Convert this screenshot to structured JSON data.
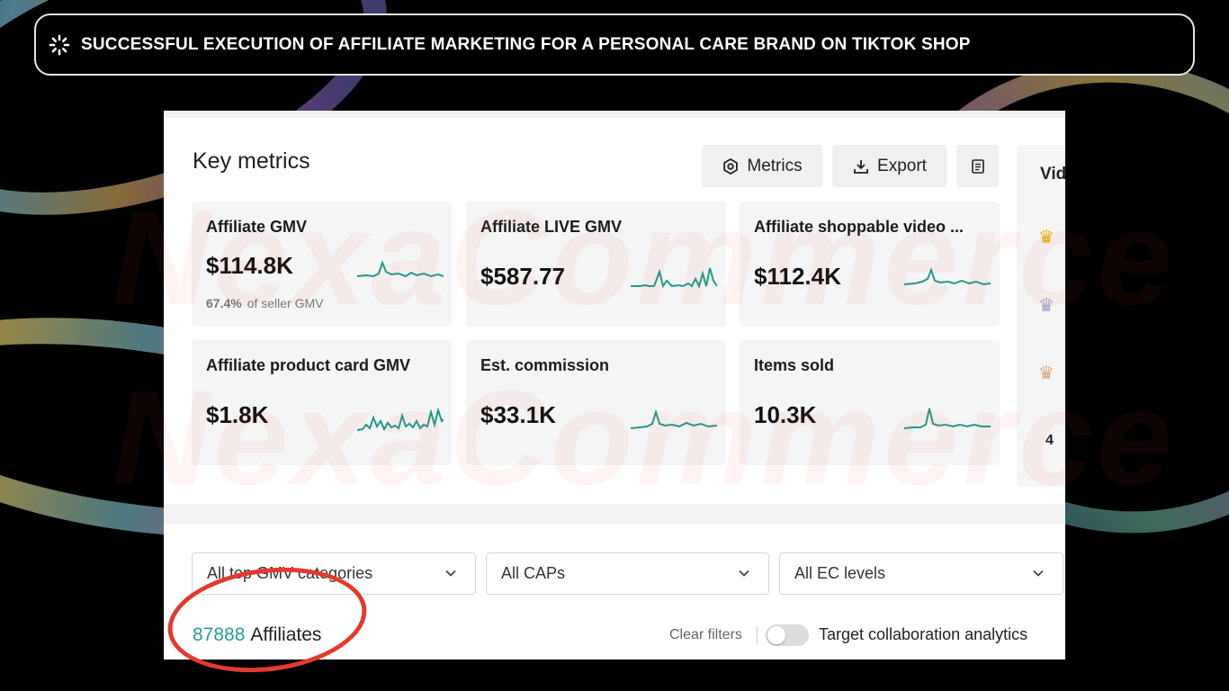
{
  "header": {
    "title": "SUCCESSFUL EXECUTION OF AFFILIATE MARKETING FOR A PERSONAL CARE BRAND ON TIKTOK SHOP"
  },
  "key_metrics": {
    "title": "Key metrics",
    "metrics_button": "Metrics",
    "export_button": "Export",
    "cards": [
      {
        "title": "Affiliate GMV",
        "value": "$114.8K",
        "sub_pct": "67.4%",
        "sub_text": "of seller GMV"
      },
      {
        "title": "Affiliate LIVE GMV",
        "value": "$587.77"
      },
      {
        "title": "Affiliate shoppable video ...",
        "value": "$112.4K"
      },
      {
        "title": "Affiliate product card GMV",
        "value": "$1.8K"
      },
      {
        "title": "Est. commission",
        "value": "$33.1K"
      },
      {
        "title": "Items sold",
        "value": "10.3K"
      }
    ]
  },
  "right_panel": {
    "label": "Vid",
    "rank4": "4"
  },
  "filters": {
    "category": "All top GMV categories",
    "caps": "All CAPs",
    "ec_levels": "All EC levels"
  },
  "footer": {
    "affiliate_count": "87888",
    "affiliates_label": "Affiliates",
    "clear_filters": "Clear filters",
    "target_label": "Target collaboration analytics"
  },
  "watermark": "NexaCommerce",
  "colors": {
    "accent": "#2a9d94",
    "highlight": "#e33a2e"
  }
}
